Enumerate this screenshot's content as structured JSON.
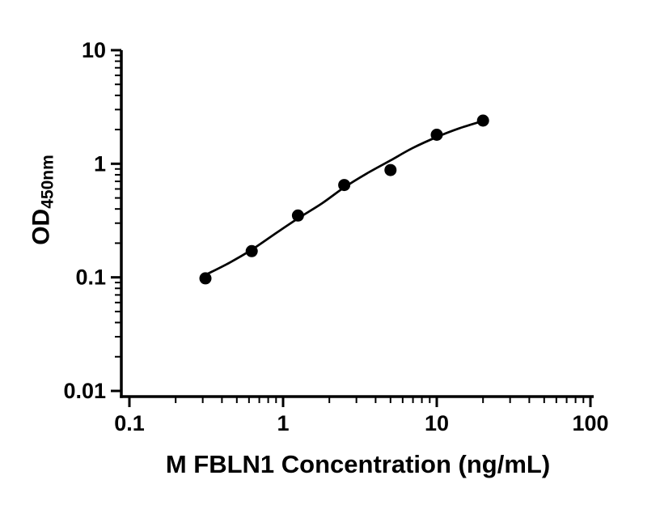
{
  "chart_data": {
    "type": "scatter",
    "title": "",
    "xlabel": "M FBLN1 Concentration (ng/mL)",
    "ylabel_main": "OD",
    "ylabel_sub": "450nm",
    "x_scale": "log",
    "y_scale": "log",
    "xlim": [
      0.1,
      100
    ],
    "ylim": [
      0.01,
      10
    ],
    "grid": "off",
    "legend": "none",
    "x_ticks": [
      {
        "value": 0.1,
        "label": "0.1"
      },
      {
        "value": 1,
        "label": "1"
      },
      {
        "value": 10,
        "label": "10"
      },
      {
        "value": 100,
        "label": "100"
      }
    ],
    "y_ticks": [
      {
        "value": 10,
        "label": "10"
      },
      {
        "value": 1,
        "label": "1"
      },
      {
        "value": 0.1,
        "label": "0.1"
      },
      {
        "value": 0.01,
        "label": "0.01"
      }
    ],
    "points": {
      "x": [
        0.3125,
        0.625,
        1.25,
        2.5,
        5,
        10,
        20
      ],
      "y": [
        0.098,
        0.17,
        0.35,
        0.65,
        0.88,
        1.8,
        2.4
      ]
    },
    "fit_curve": {
      "x": [
        0.3125,
        0.45,
        0.625,
        0.9,
        1.25,
        1.8,
        2.5,
        3.5,
        5,
        7,
        10,
        14,
        20
      ],
      "y": [
        0.105,
        0.135,
        0.175,
        0.245,
        0.33,
        0.45,
        0.62,
        0.82,
        1.07,
        1.38,
        1.72,
        2.05,
        2.38
      ]
    },
    "colors": {
      "axis": "#000000",
      "curve": "#000000",
      "points": "#000000",
      "background": "#ffffff"
    }
  }
}
